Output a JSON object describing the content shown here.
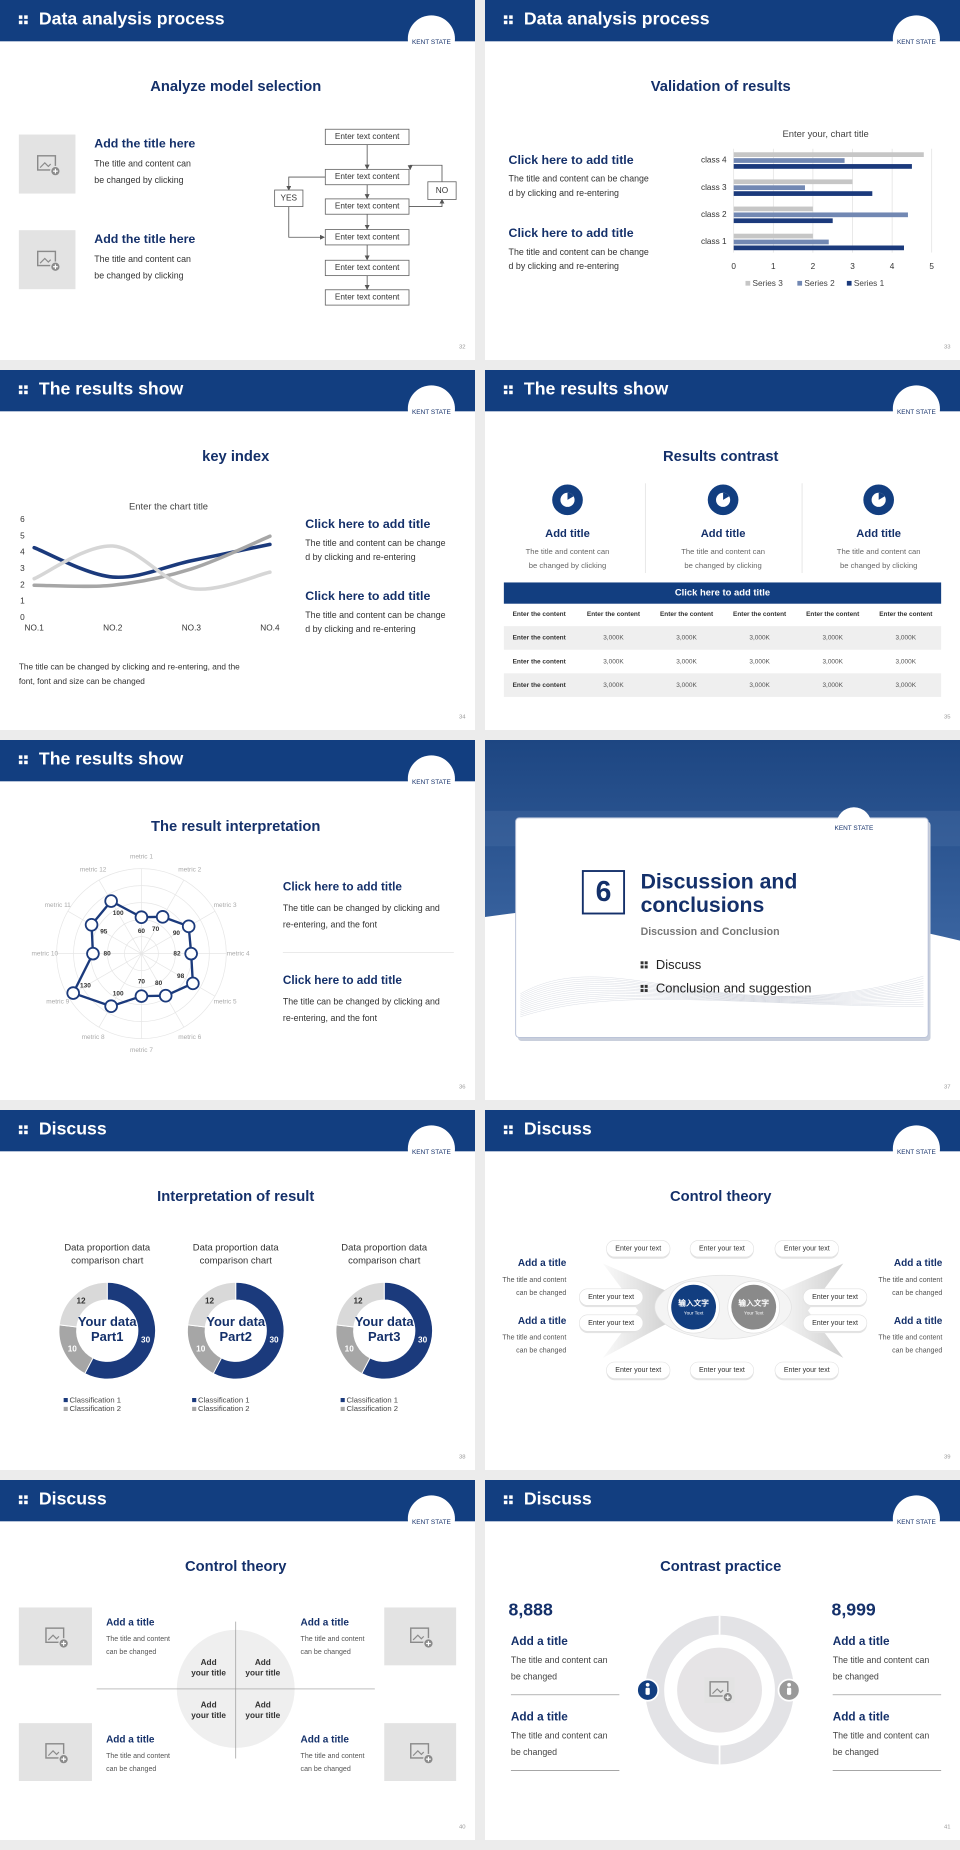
{
  "logo": "KENT STATE",
  "slides": [
    {
      "header": "Data analysis process",
      "title": "Analyze model selection",
      "page": "32",
      "items": [
        {
          "title": "Add the title here",
          "text": [
            "The title and content can",
            "be changed by clicking"
          ]
        },
        {
          "title": "Add the title here",
          "text": [
            "The title and content can",
            "be changed by clicking"
          ]
        }
      ],
      "flow": {
        "boxes": [
          "Enter text content",
          "Enter text content",
          "Enter text content",
          "Enter text content",
          "Enter text content",
          "Enter text content"
        ],
        "yes": "YES",
        "no": "NO"
      }
    },
    {
      "header": "Data analysis process",
      "title": "Validation of results",
      "page": "33",
      "items": [
        {
          "title": "Click here to add title",
          "text": [
            "The title and content can be change",
            "d by clicking and re-entering"
          ]
        },
        {
          "title": "Click here to add title",
          "text": [
            "The title and content can be change",
            "d by clicking and re-entering"
          ]
        }
      ],
      "chart": {
        "type": "bar",
        "orientation": "horizontal",
        "title": "Enter your, chart title",
        "categories": [
          "class 1",
          "class 2",
          "class 3",
          "class 4"
        ],
        "series": [
          {
            "name": "Series 1",
            "color": "#1b3a7c",
            "values": [
              4.3,
              2.5,
              3.5,
              4.5
            ]
          },
          {
            "name": "Series 2",
            "color": "#7288b3",
            "values": [
              2.4,
              4.4,
              1.8,
              2.8
            ]
          },
          {
            "name": "Series 3",
            "color": "#c6c6c6",
            "values": [
              2,
              2,
              3,
              4.8
            ]
          }
        ],
        "xlim": [
          0,
          5
        ],
        "xticks": [
          0,
          1,
          2,
          3,
          4,
          5
        ],
        "grid": true
      }
    },
    {
      "header": "The results show",
      "title": "key index",
      "page": "34",
      "chart": {
        "type": "line",
        "title": "Enter the chart title",
        "categories": [
          "NO.1",
          "NO.2",
          "NO.3",
          "NO.4"
        ],
        "series": [
          {
            "color": "#1b3a7c",
            "values": [
              4.3,
              2.5,
              3.5,
              4.5
            ]
          },
          {
            "color": "#a6a6a6",
            "values": [
              2,
              2,
              3,
              5
            ]
          },
          {
            "color": "#d6d6d6",
            "values": [
              2.4,
              4.4,
              1.8,
              2.8
            ]
          }
        ],
        "ylim": [
          0,
          6
        ],
        "yticks": [
          0,
          1,
          2,
          3,
          4,
          5,
          6
        ],
        "smooth": true
      },
      "items": [
        {
          "title": "Click here to add title",
          "text": [
            "The title and content can be change",
            "d by clicking and re-entering"
          ]
        },
        {
          "title": "Click here to add title",
          "text": [
            "The title and content can be change",
            "d by clicking and re-entering"
          ]
        }
      ],
      "note": [
        "The title can be changed by clicking and re-entering, and the",
        "font, font and size can be changed"
      ]
    },
    {
      "header": "The results show",
      "title": "Results contrast",
      "page": "35",
      "columns": [
        {
          "title": "Add title",
          "text": [
            "The title and content can",
            "be changed by clicking"
          ]
        },
        {
          "title": "Add title",
          "text": [
            "The title and content can",
            "be changed by clicking"
          ]
        },
        {
          "title": "Add title",
          "text": [
            "The title and content can",
            "be changed by clicking"
          ]
        }
      ],
      "table": {
        "caption": "Click here to add title",
        "header": [
          "Enter the content",
          "Enter the content",
          "Enter the content",
          "Enter the content",
          "Enter the content",
          "Enter the content"
        ],
        "rows": [
          [
            "Enter the content",
            "3,000K",
            "3,000K",
            "3,000K",
            "3,000K",
            "3,000K"
          ],
          [
            "Enter the content",
            "3,000K",
            "3,000K",
            "3,000K",
            "3,000K",
            "3,000K"
          ],
          [
            "Enter the content",
            "3,000K",
            "3,000K",
            "3,000K",
            "3,000K",
            "3,000K"
          ]
        ]
      }
    },
    {
      "header": "The results show",
      "title": "The result interpretation",
      "page": "36",
      "chart": {
        "type": "radar",
        "categories": [
          "metric 1",
          "metric 2",
          "metric 3",
          "metric 4",
          "metric 5",
          "metric 6",
          "metric 7",
          "metric 8",
          "metric 9",
          "metric 10",
          "metric 11",
          "metric 12"
        ],
        "values": [
          60,
          70,
          90,
          82,
          98,
          80,
          70,
          100,
          130,
          80,
          95,
          100
        ],
        "color": "#1b3a7c",
        "rlim": [
          0,
          140
        ],
        "rticks": [
          28,
          56,
          84,
          112,
          140
        ]
      },
      "items": [
        {
          "title": "Click here to add  title",
          "text": [
            "The title can be changed by clicking and",
            "re-entering, and the font"
          ]
        },
        {
          "title": "Click here to add  title",
          "text": [
            "The title can be changed by clicking and",
            "re-entering, and the font"
          ]
        }
      ]
    },
    {
      "number": "6",
      "title": [
        "Discussion and",
        "conclusions"
      ],
      "subtitle": "Discussion and Conclusion",
      "list": [
        "Discuss",
        "Conclusion and suggestion"
      ],
      "page": "37"
    },
    {
      "header": "Discuss",
      "title": "Interpretation of result",
      "page": "38",
      "charts": [
        {
          "type": "donut",
          "title": [
            "Data proportion data",
            "comparison chart"
          ],
          "center": [
            "Your data",
            "Part1"
          ],
          "categories": [
            "Classification 1",
            "Classification 2",
            null
          ],
          "values": [
            30,
            10,
            12
          ],
          "colors": [
            "#1b3a7c",
            "#a6a6a6",
            "#d9d9d9"
          ]
        },
        {
          "type": "donut",
          "title": [
            "Data proportion data",
            "comparison chart"
          ],
          "center": [
            "Your data",
            "Part2"
          ],
          "categories": [
            "Classification 1",
            "Classification 2",
            null
          ],
          "values": [
            30,
            10,
            12
          ],
          "colors": [
            "#1b3a7c",
            "#a6a6a6",
            "#d9d9d9"
          ]
        },
        {
          "type": "donut",
          "title": [
            "Data proportion data",
            "comparison chart"
          ],
          "center": [
            "Your data",
            "Part3"
          ],
          "categories": [
            "Classification 1",
            "Classification 2",
            null
          ],
          "values": [
            30,
            10,
            12
          ],
          "colors": [
            "#1b3a7c",
            "#a6a6a6",
            "#d9d9d9"
          ]
        }
      ]
    },
    {
      "header": "Discuss",
      "title": "Control theory",
      "page": "39",
      "left": [
        {
          "title": "Add a title",
          "text": [
            "The title and content",
            "can be changed"
          ]
        },
        {
          "title": "Add a title",
          "text": [
            "The title and content",
            "can be changed"
          ]
        }
      ],
      "right": [
        {
          "title": "Add a title",
          "text": [
            "The title and content",
            "can be changed"
          ]
        },
        {
          "title": "Add a title",
          "text": [
            "The title and content",
            "can be changed"
          ]
        }
      ],
      "bubbles": [
        "Enter your text",
        "Enter your text",
        "Enter your text",
        "Enter your text",
        "Enter your text",
        "Enter your text",
        "Enter your text",
        "Enter your text",
        "Enter your text",
        "Enter your text"
      ],
      "circles": [
        {
          "text": "输入文字",
          "sub": "Your Text"
        },
        {
          "text": "输入文字",
          "sub": "Your Text"
        }
      ]
    },
    {
      "header": "Discuss",
      "title": "Control theory",
      "page": "40",
      "items": [
        {
          "title": "Add a title",
          "text": [
            "The title and content",
            "can be changed"
          ]
        },
        {
          "title": "Add a title",
          "text": [
            "The title and content",
            "can be changed"
          ]
        },
        {
          "title": "Add a title",
          "text": [
            "The title and content",
            "can be changed"
          ]
        },
        {
          "title": "Add a title",
          "text": [
            "The title and content",
            "can be changed"
          ]
        }
      ],
      "quadrants": [
        [
          "Add",
          "your title"
        ],
        [
          "Add",
          "your title"
        ],
        [
          "Add",
          "your title"
        ],
        [
          "Add",
          "your title"
        ]
      ]
    },
    {
      "header": "Discuss",
      "title": "Contrast practice",
      "page": "41",
      "left": {
        "number": "8,888",
        "items": [
          {
            "title": "Add a title",
            "text": [
              "The title and content can",
              "be changed"
            ]
          },
          {
            "title": "Add a title",
            "text": [
              "The title and content can",
              "be changed"
            ]
          }
        ]
      },
      "right": {
        "number": "8,999",
        "items": [
          {
            "title": "Add a title",
            "text": [
              "The title and content can",
              "be changed"
            ]
          },
          {
            "title": "Add a title",
            "text": [
              "The title and content can",
              "be changed"
            ]
          }
        ]
      }
    }
  ]
}
